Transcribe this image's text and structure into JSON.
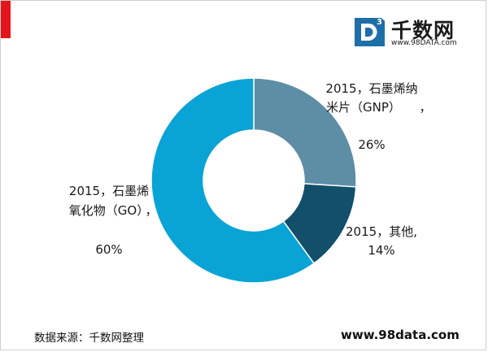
{
  "branding": {
    "red_marker_color": "#e5161b",
    "logo_mark_letter": "D",
    "logo_mark_superscript": "3",
    "logo_name": "千数网",
    "logo_url": "www.98DATA.com",
    "logo_color": "#1e6fa8"
  },
  "footer": {
    "source_text": "数据来源：千数网整理",
    "site_text": "www.98data.com"
  },
  "chart_data": {
    "type": "pie",
    "donut": true,
    "title": "",
    "slices": [
      {
        "label_lines": [
          "2015，石墨烯纳",
          "米片（GNP）",
          "，",
          "26%"
        ],
        "value": 26,
        "color": "#5e8da6"
      },
      {
        "label_lines": [
          "2015，其他,",
          "14%"
        ],
        "value": 14,
        "color": "#124f6a"
      },
      {
        "label_lines": [
          "2015，石墨烯",
          "氧化物（GO）",
          "，",
          "60%"
        ],
        "value": 60,
        "color": "#0aa3d6"
      }
    ]
  }
}
